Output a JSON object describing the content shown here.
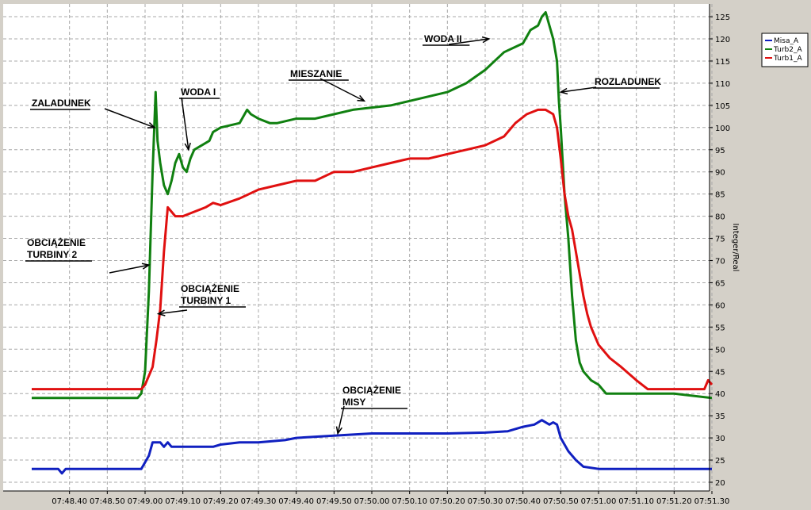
{
  "colors": {
    "background": "#d4d0c8",
    "plot": "#ffffff",
    "grid": "#a8a8a8",
    "misa": "#1020c0",
    "turb2": "#108010",
    "turb1": "#e01010"
  },
  "chart_data": {
    "type": "line",
    "ylabel": "Integer/Real",
    "ylim": [
      19,
      127
    ],
    "y_ticks": [
      "20",
      "25",
      "30",
      "35",
      "40",
      "45",
      "50",
      "55",
      "60",
      "65",
      "70",
      "75",
      "80",
      "85",
      "90",
      "95",
      "100",
      "105",
      "110",
      "115",
      "120",
      "125"
    ],
    "x_ticks": [
      "07:48.40",
      "07:48.50",
      "07:49.00",
      "07:49.10",
      "07:49.20",
      "07:49.30",
      "07:49.40",
      "07:49.50",
      "07:50.00",
      "07:50.10",
      "07:50.20",
      "07:50.30",
      "07:50.40",
      "07:50.50",
      "07:51.00",
      "07:51.10",
      "07:51.20",
      "07:51.30"
    ],
    "xlim": [
      0,
      180
    ],
    "x_unit": "seconds after 07:48.30",
    "grid": true,
    "legend_position": "top-right",
    "series": [
      {
        "name": "Misa_A",
        "color": "#1020c0",
        "points": [
          [
            0,
            23
          ],
          [
            7,
            23
          ],
          [
            8,
            22
          ],
          [
            9,
            23
          ],
          [
            29,
            23
          ],
          [
            31,
            26
          ],
          [
            32,
            29
          ],
          [
            34,
            29
          ],
          [
            35,
            28
          ],
          [
            36,
            29
          ],
          [
            37,
            28
          ],
          [
            48,
            28
          ],
          [
            50,
            28.5
          ],
          [
            55,
            29
          ],
          [
            60,
            29
          ],
          [
            67,
            29.5
          ],
          [
            70,
            30
          ],
          [
            80,
            30.5
          ],
          [
            90,
            31
          ],
          [
            100,
            31
          ],
          [
            110,
            31
          ],
          [
            120,
            31.2
          ],
          [
            126,
            31.5
          ],
          [
            130,
            32.5
          ],
          [
            133,
            33
          ],
          [
            135,
            34
          ],
          [
            137,
            33
          ],
          [
            138,
            33.5
          ],
          [
            139,
            33
          ],
          [
            140,
            30
          ],
          [
            142,
            27
          ],
          [
            144,
            25
          ],
          [
            146,
            23.5
          ],
          [
            150,
            23
          ],
          [
            180,
            23
          ]
        ]
      },
      {
        "name": "Turb2_A",
        "color": "#108010",
        "points": [
          [
            0,
            39
          ],
          [
            28,
            39
          ],
          [
            29,
            40
          ],
          [
            30,
            45
          ],
          [
            31,
            63
          ],
          [
            32,
            90
          ],
          [
            32.8,
            108
          ],
          [
            33.3,
            97
          ],
          [
            34,
            92
          ],
          [
            35,
            87
          ],
          [
            36,
            85
          ],
          [
            37,
            88
          ],
          [
            38,
            92
          ],
          [
            39,
            94
          ],
          [
            40,
            91
          ],
          [
            41,
            90
          ],
          [
            42,
            93
          ],
          [
            43,
            95
          ],
          [
            45,
            96
          ],
          [
            47,
            97
          ],
          [
            48,
            99
          ],
          [
            50,
            100
          ],
          [
            55,
            101
          ],
          [
            57,
            104
          ],
          [
            58,
            103
          ],
          [
            60,
            102
          ],
          [
            63,
            101
          ],
          [
            65,
            101
          ],
          [
            70,
            102
          ],
          [
            75,
            102
          ],
          [
            80,
            103
          ],
          [
            85,
            104
          ],
          [
            90,
            104.5
          ],
          [
            95,
            105
          ],
          [
            100,
            106
          ],
          [
            105,
            107
          ],
          [
            110,
            108
          ],
          [
            115,
            110
          ],
          [
            120,
            113
          ],
          [
            125,
            117
          ],
          [
            130,
            119
          ],
          [
            132,
            122
          ],
          [
            134,
            123
          ],
          [
            135,
            125
          ],
          [
            136,
            126
          ],
          [
            137,
            123
          ],
          [
            138,
            120
          ],
          [
            139,
            115
          ],
          [
            139.5,
            106
          ],
          [
            140,
            100
          ],
          [
            141,
            85
          ],
          [
            142,
            75
          ],
          [
            143,
            62
          ],
          [
            144,
            52
          ],
          [
            145,
            47
          ],
          [
            146,
            45
          ],
          [
            148,
            43
          ],
          [
            150,
            42
          ],
          [
            152,
            40
          ],
          [
            160,
            40
          ],
          [
            170,
            40
          ],
          [
            180,
            39
          ]
        ]
      },
      {
        "name": "Turb1_A",
        "color": "#e01010",
        "points": [
          [
            0,
            41
          ],
          [
            29,
            41
          ],
          [
            30,
            42
          ],
          [
            32,
            46
          ],
          [
            33,
            52
          ],
          [
            34,
            59
          ],
          [
            35,
            72
          ],
          [
            36,
            82
          ],
          [
            37,
            81
          ],
          [
            38,
            80
          ],
          [
            40,
            80
          ],
          [
            43,
            81
          ],
          [
            46,
            82
          ],
          [
            48,
            83
          ],
          [
            50,
            82.5
          ],
          [
            55,
            84
          ],
          [
            60,
            86
          ],
          [
            65,
            87
          ],
          [
            70,
            88
          ],
          [
            75,
            88
          ],
          [
            80,
            90
          ],
          [
            85,
            90
          ],
          [
            90,
            91
          ],
          [
            95,
            92
          ],
          [
            100,
            93
          ],
          [
            105,
            93
          ],
          [
            110,
            94
          ],
          [
            115,
            95
          ],
          [
            120,
            96
          ],
          [
            125,
            98
          ],
          [
            128,
            101
          ],
          [
            131,
            103
          ],
          [
            134,
            104
          ],
          [
            136,
            104
          ],
          [
            138,
            103
          ],
          [
            139,
            100
          ],
          [
            140,
            93
          ],
          [
            141,
            85
          ],
          [
            142,
            80
          ],
          [
            143,
            77
          ],
          [
            144,
            72
          ],
          [
            145,
            67
          ],
          [
            146,
            62
          ],
          [
            147,
            58
          ],
          [
            148,
            55
          ],
          [
            150,
            51
          ],
          [
            153,
            48
          ],
          [
            156,
            46
          ],
          [
            160,
            43
          ],
          [
            163,
            41
          ],
          [
            170,
            41
          ],
          [
            178,
            41
          ],
          [
            179,
            43
          ],
          [
            180,
            42
          ]
        ]
      }
    ],
    "annotations": [
      {
        "lines": [
          "ZALADUNEK"
        ],
        "target": [
          32.5,
          100
        ]
      },
      {
        "lines": [
          "WODA I"
        ],
        "target": [
          41.5,
          95
        ]
      },
      {
        "lines": [
          "MIESZANIE"
        ],
        "target": [
          88,
          106
        ]
      },
      {
        "lines": [
          "WODA II"
        ],
        "target": [
          121,
          120
        ]
      },
      {
        "lines": [
          "ROZLADUNEK"
        ],
        "target": [
          140,
          108
        ]
      },
      {
        "lines": [
          "OBCIĄŻENIE",
          "TURBINY 2"
        ],
        "target": [
          31,
          69
        ]
      },
      {
        "lines": [
          "OBCIĄŻENIE",
          "TURBINY 1"
        ],
        "target": [
          33.5,
          58
        ]
      },
      {
        "lines": [
          "OBCIĄŻENIE",
          "MISY"
        ],
        "target": [
          81,
          31
        ]
      }
    ]
  }
}
